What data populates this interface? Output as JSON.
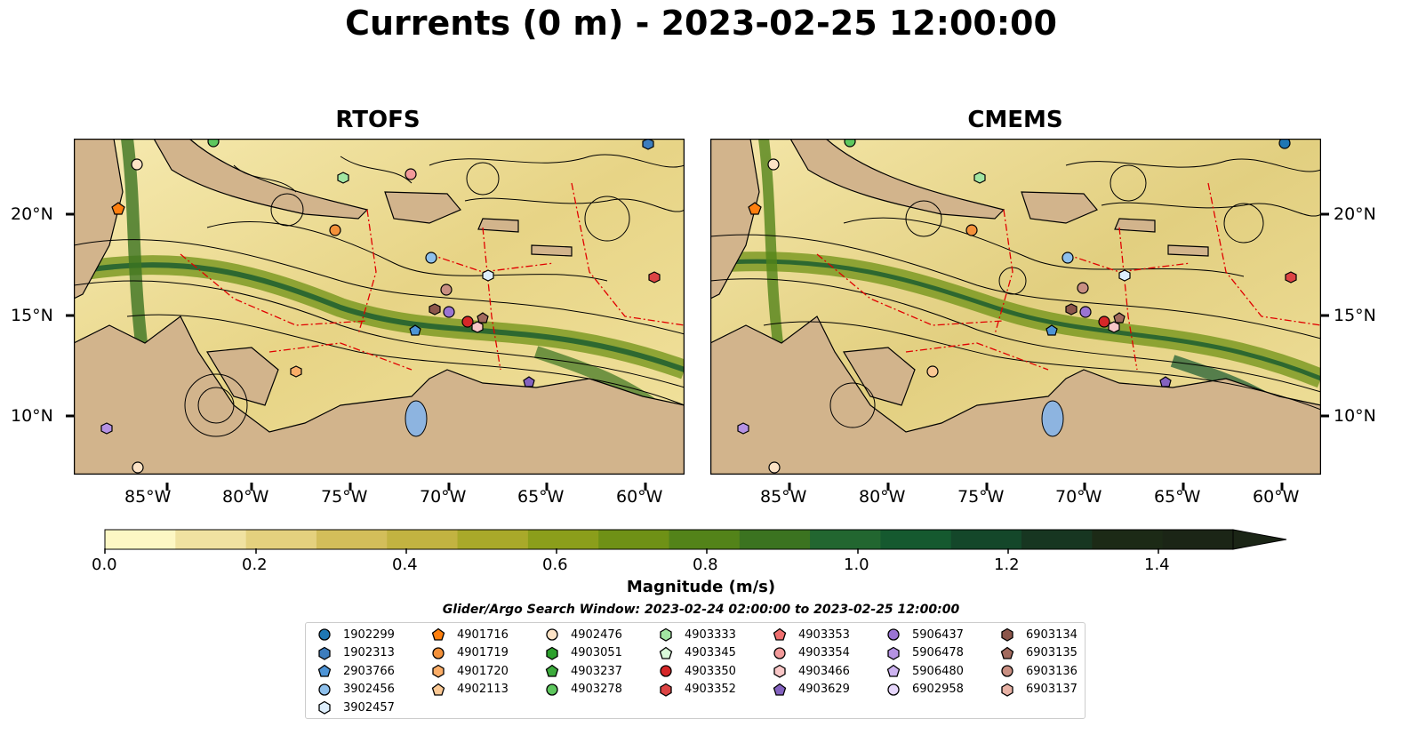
{
  "title": "Currents (0 m) - 2023-02-25 12:00:00",
  "panels": [
    {
      "title": "RTOFS",
      "lon_labels": [
        "85°W",
        "80°W",
        "75°W",
        "70°W",
        "65°W",
        "60°W"
      ],
      "lat_labels_left": [
        "20°N",
        "15°N",
        "10°N"
      ]
    },
    {
      "title": "CMEMS",
      "lon_labels": [
        "85°W",
        "80°W",
        "75°W",
        "70°W",
        "65°W",
        "60°W"
      ],
      "lat_labels_right": [
        "20°N",
        "15°N",
        "10°N"
      ]
    }
  ],
  "colorbar": {
    "label": "Magnitude (m/s)",
    "ticks": [
      "0.0",
      "0.2",
      "0.4",
      "0.6",
      "0.8",
      "1.0",
      "1.2",
      "1.4"
    ],
    "colors": [
      "#fdf7c4",
      "#f0e2a1",
      "#e4d17e",
      "#d3be5a",
      "#c2b341",
      "#a9a92a",
      "#8b9e1b",
      "#6f9116",
      "#538319",
      "#3b7320",
      "#226630",
      "#15592f",
      "#14472a",
      "#173621",
      "#1c2a16",
      "#1b2516"
    ],
    "land_color": "#d2b48c",
    "lake_color": "#8db4e0"
  },
  "search_window": "Glider/Argo Search Window: 2023-02-24 02:00:00 to 2023-02-25 12:00:00",
  "legend": [
    {
      "id": "1902299",
      "shape": "circle",
      "color": "#1f77b4"
    },
    {
      "id": "1902313",
      "shape": "hexagon",
      "color": "#3d7dbe"
    },
    {
      "id": "2903766",
      "shape": "pentagon",
      "color": "#4d94d6"
    },
    {
      "id": "3902456",
      "shape": "circle",
      "color": "#8ec0ec"
    },
    {
      "id": "3902457",
      "shape": "hexagon",
      "color": "#ddeefc"
    },
    {
      "id": "4901716",
      "shape": "pentagon",
      "color": "#ff7f0e"
    },
    {
      "id": "4901719",
      "shape": "circle",
      "color": "#f4913a"
    },
    {
      "id": "4901720",
      "shape": "hexagon",
      "color": "#fbad67"
    },
    {
      "id": "4902113",
      "shape": "pentagon",
      "color": "#fbc893"
    },
    {
      "id": "4902476",
      "shape": "circle",
      "color": "#fde3c6"
    },
    {
      "id": "4903051",
      "shape": "hexagon",
      "color": "#2ca02c"
    },
    {
      "id": "4903237",
      "shape": "pentagon",
      "color": "#3cab3c"
    },
    {
      "id": "4903278",
      "shape": "circle",
      "color": "#5ec75e"
    },
    {
      "id": "4903333",
      "shape": "hexagon",
      "color": "#a2e6a2"
    },
    {
      "id": "4903345",
      "shape": "pentagon",
      "color": "#dafada"
    },
    {
      "id": "4903350",
      "shape": "circle",
      "color": "#d62728"
    },
    {
      "id": "4903352",
      "shape": "hexagon",
      "color": "#dd4444"
    },
    {
      "id": "4903353",
      "shape": "pentagon",
      "color": "#ef6f6f"
    },
    {
      "id": "4903354",
      "shape": "circle",
      "color": "#f29a9a"
    },
    {
      "id": "4903466",
      "shape": "hexagon",
      "color": "#f9c7c7"
    },
    {
      "id": "4903629",
      "shape": "pentagon",
      "color": "#8462c0"
    },
    {
      "id": "5906437",
      "shape": "circle",
      "color": "#9a74d3"
    },
    {
      "id": "5906478",
      "shape": "hexagon",
      "color": "#b592e3"
    },
    {
      "id": "5906480",
      "shape": "pentagon",
      "color": "#cdb3f0"
    },
    {
      "id": "6902958",
      "shape": "circle",
      "color": "#e6d6fb"
    },
    {
      "id": "6903134",
      "shape": "hexagon",
      "color": "#8c564b"
    },
    {
      "id": "6903135",
      "shape": "pentagon",
      "color": "#a26a5e"
    },
    {
      "id": "6903136",
      "shape": "circle",
      "color": "#c98f82"
    },
    {
      "id": "6903137",
      "shape": "hexagon",
      "color": "#e8b2a5"
    }
  ]
}
